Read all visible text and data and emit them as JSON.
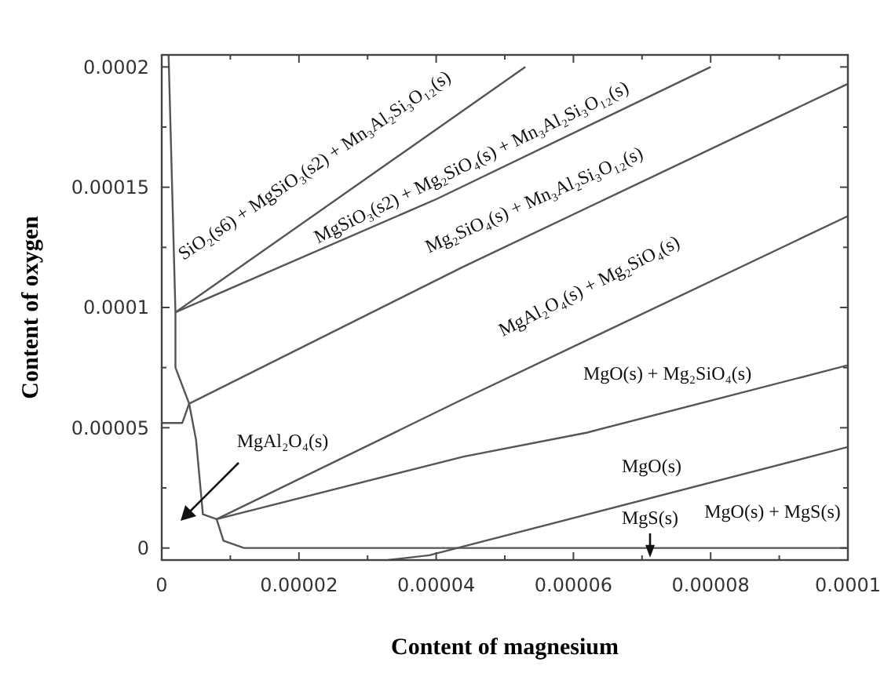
{
  "chart_data": {
    "type": "line",
    "xlabel": "Content of magnesium",
    "ylabel": "Content of oxygen",
    "xlim": [
      0,
      0.0001
    ],
    "ylim": [
      -5e-06,
      0.000205
    ],
    "xticks": [
      0,
      {
        "value": 1e-05,
        "label": null
      },
      {
        "value": 2e-05,
        "label": "0.00002"
      },
      {
        "value": 3e-05,
        "label": null
      },
      {
        "value": 4e-05,
        "label": "0.00004"
      },
      {
        "value": 5e-05,
        "label": null
      },
      {
        "value": 6e-05,
        "label": "0.00006"
      },
      {
        "value": 7e-05,
        "label": null
      },
      {
        "value": 8e-05,
        "label": "0.00008"
      },
      {
        "value": 9e-05,
        "label": null
      },
      {
        "value": 0.0001,
        "label": "0.0001"
      }
    ],
    "yticks": [
      0,
      {
        "value": 2.5e-05,
        "label": null
      },
      {
        "value": 5e-05,
        "label": "0.00005"
      },
      {
        "value": 7.5e-05,
        "label": null
      },
      {
        "value": 0.0001,
        "label": "0.0001"
      },
      {
        "value": 0.000125,
        "label": null
      },
      {
        "value": 0.00015,
        "label": "0.00015"
      },
      {
        "value": 0.000175,
        "label": null
      },
      {
        "value": 0.0002,
        "label": "0.0002"
      }
    ],
    "marker": "none",
    "line_style": "solid",
    "series": [
      {
        "color": "#555555",
        "x": [
          2e-06,
          5.3e-05
        ],
        "values": [
          9.8e-05,
          0.0002
        ]
      },
      {
        "color": "#555555",
        "x": [
          2e-06,
          4e-05,
          8e-05
        ],
        "values": [
          9.8e-05,
          0.000145,
          0.0002
        ]
      },
      {
        "color": "#555555",
        "x": [
          0,
          3e-06,
          4e-06,
          4.4e-05,
          0.0001
        ],
        "values": [
          5.2e-05,
          5.2e-05,
          6e-05,
          0.000117,
          0.000193
        ]
      },
      {
        "color": "#555555",
        "x": [
          8e-06,
          4.4e-05,
          0.0001
        ],
        "values": [
          1.2e-05,
          6.2e-05,
          0.000138
        ]
      },
      {
        "color": "#555555",
        "x": [
          8e-06,
          4.4e-05,
          6.2e-05,
          0.0001
        ],
        "values": [
          1.2e-05,
          3.8e-05,
          4.8e-05,
          7.6e-05
        ]
      },
      {
        "color": "#555555",
        "x": [
          3.3e-05,
          3.9e-05,
          0.0001
        ],
        "values": [
          -5e-06,
          -3e-06,
          4.2e-05
        ]
      },
      {
        "color": "#555555",
        "x": [
          8e-06,
          9e-06,
          1.2e-05,
          0.0001
        ],
        "values": [
          1.2e-05,
          3e-06,
          0,
          0
        ]
      },
      {
        "color": "#555555",
        "x": [
          1e-06,
          2e-06,
          2e-06,
          4e-06,
          5e-06,
          6e-06,
          8e-06
        ],
        "values": [
          0.000205,
          9.8e-05,
          7.5e-05,
          6e-05,
          4.5e-05,
          1.4e-05,
          1.2e-05
        ]
      }
    ],
    "annotations": [
      "SiO₂(s6) + MgSiO₃(s2) + Mn₃Al₂Si₃O₁₂(s)",
      "MgSiO₃(s2) + Mg₂SiO₄(s) + Mn₃Al₂Si₃O₁₂(s)",
      "Mg₂SiO₄(s) + Mn₃Al₂Si₃O₁₂(s)",
      "MgAl₂O₄(s) + Mg₂SiO₄(s)",
      "MgO(s) + Mg₂SiO₄(s)",
      "MgO(s)",
      "MgS(s)",
      "MgO(s) + MgS(s)",
      "MgAl₂O₄(s)"
    ]
  }
}
